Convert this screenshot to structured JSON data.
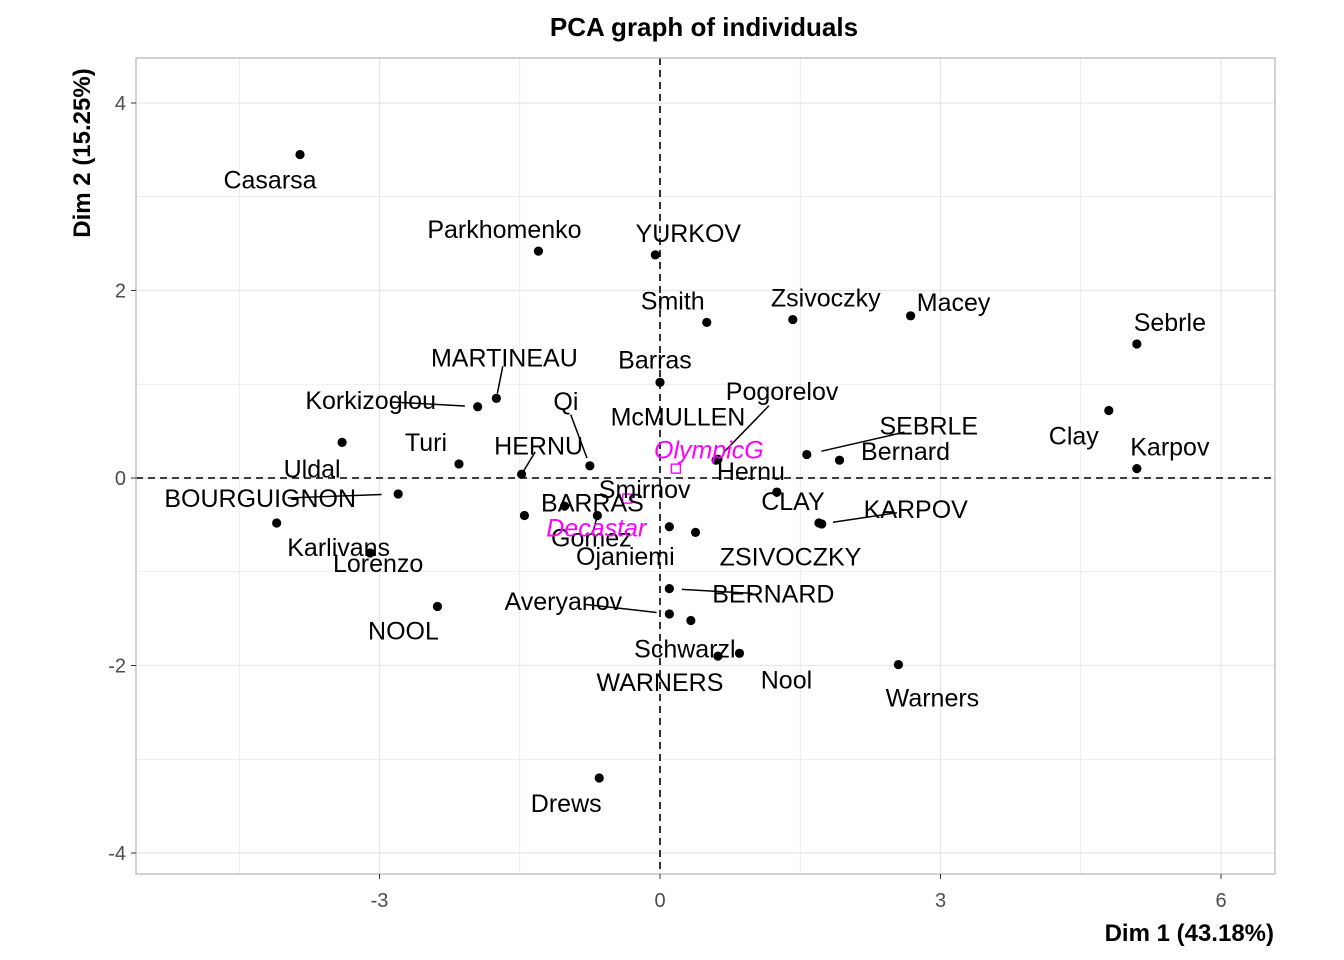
{
  "chart_data": {
    "type": "scatter",
    "title": "PCA graph of individuals",
    "xlabel": "Dim 1 (43.18%)",
    "ylabel": "Dim 2 (15.25%)",
    "xlim": [
      -5.55,
      6.55
    ],
    "ylim": [
      -4.2,
      4.5
    ],
    "x_ticks": [
      -3,
      0,
      3,
      6
    ],
    "y_ticks": [
      -4,
      -2,
      0,
      2,
      4
    ],
    "x_tick_labels": [
      "-3",
      "0",
      "3",
      "6"
    ],
    "y_tick_labels": [
      "-4",
      "-2",
      "0",
      "2",
      "4"
    ],
    "grid": true,
    "reference_lines": "dashed lines at x=0 and y=0",
    "colors": {
      "active": "#000000",
      "supplementary": "#ff00ff",
      "grid": "#e0e0e0",
      "panel_border": "#b3b3b3"
    },
    "points": [
      {
        "label": "Casarsa",
        "x": -3.85,
        "y": 3.45
      },
      {
        "label": "Parkhomenko",
        "x": -1.3,
        "y": 2.42
      },
      {
        "label": "YURKOV",
        "x": -0.05,
        "y": 2.38
      },
      {
        "label": "Smith",
        "x": 0.5,
        "y": 1.66
      },
      {
        "label": "Zsivoczky",
        "x": 1.42,
        "y": 1.69
      },
      {
        "label": "Macey",
        "x": 2.68,
        "y": 1.73
      },
      {
        "label": "Sebrle",
        "x": 5.1,
        "y": 1.43
      },
      {
        "label": "Barras",
        "x": 0,
        "y": 1.02
      },
      {
        "label": "MARTINEAU",
        "x": -1.75,
        "y": 0.85
      },
      {
        "label": "Korkizoglou",
        "x": -1.95,
        "y": 0.76
      },
      {
        "label": "Qi",
        "x": -0.75,
        "y": 0.13
      },
      {
        "label": "Pogorelov",
        "x": 0.6,
        "y": 0.19
      },
      {
        "label": "McMULLEN",
        "x": 0.62,
        "y": 0.2
      },
      {
        "label": "Clay",
        "x": 4.8,
        "y": 0.72
      },
      {
        "label": "SEBRLE",
        "x": 1.57,
        "y": 0.25
      },
      {
        "label": "Bernard",
        "x": 1.92,
        "y": 0.19
      },
      {
        "label": "Karpov",
        "x": 5.1,
        "y": 0.1
      },
      {
        "label": "Turi",
        "x": -2.15,
        "y": 0.15
      },
      {
        "label": "HERNU",
        "x": -1.48,
        "y": 0.04
      },
      {
        "label": "Uldal",
        "x": -3.4,
        "y": 0.38
      },
      {
        "label": "Hernu",
        "x": 1.25,
        "y": -0.15
      },
      {
        "label": "BOURGUIGNON",
        "x": -2.8,
        "y": -0.17
      },
      {
        "label": "BARRAS",
        "x": -1.45,
        "y": -0.4
      },
      {
        "label": "Smirnov",
        "x": -1.02,
        "y": -0.3
      },
      {
        "label": "Karlivans",
        "x": -4.1,
        "y": -0.48
      },
      {
        "label": "Gomez",
        "x": -0.67,
        "y": -0.4
      },
      {
        "label": "CLAY",
        "x": 1.7,
        "y": -0.48
      },
      {
        "label": "KARPOV",
        "x": 1.73,
        "y": -0.49
      },
      {
        "label": "Ojaniemi",
        "x": 0.1,
        "y": -0.52
      },
      {
        "label": "ZSIVOCZKY",
        "x": 0.38,
        "y": -0.58
      },
      {
        "label": "Lorenzo",
        "x": -3.1,
        "y": -0.8
      },
      {
        "label": "BERNARD",
        "x": 0.1,
        "y": -1.18
      },
      {
        "label": "NOOL",
        "x": -2.38,
        "y": -1.37
      },
      {
        "label": "Averyanov",
        "x": 0.1,
        "y": -1.45
      },
      {
        "label": "Schwarzl",
        "x": 0.33,
        "y": -1.52
      },
      {
        "label": "WARNERS",
        "x": 0.62,
        "y": -1.9
      },
      {
        "label": "Nool",
        "x": 0.85,
        "y": -1.87
      },
      {
        "label": "Warners",
        "x": 2.55,
        "y": -1.99
      },
      {
        "label": "Drews",
        "x": -0.65,
        "y": -3.2
      }
    ],
    "supplementary_points": [
      {
        "label": "OlympicG",
        "x": 0.17,
        "y": 0.1
      },
      {
        "label": "Decastar",
        "x": -0.35,
        "y": -0.22
      }
    ]
  }
}
